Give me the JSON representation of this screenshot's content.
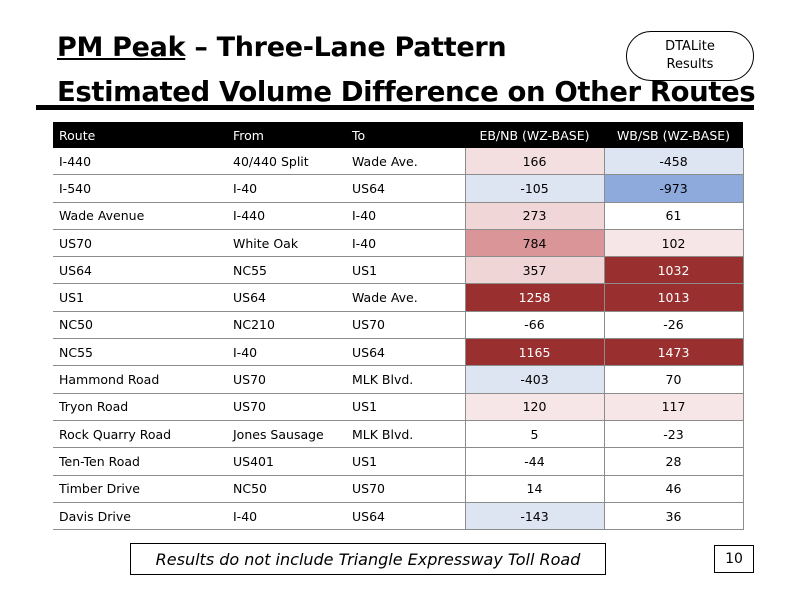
{
  "title": {
    "line1_underlined": "PM Peak",
    "line1_rest": " – Three-Lane Pattern",
    "line2": "Estimated Volume Difference on Other Routes"
  },
  "badge": {
    "line1": "DTALite",
    "line2": "Results"
  },
  "table": {
    "headers": [
      "Route",
      "From",
      "To",
      "EB/NB (WZ-BASE)",
      "WB/SB (WZ-BASE)"
    ],
    "rows": [
      {
        "route": "I-440",
        "from": "40/440 Split",
        "to": "Wade Ave.",
        "eb": "166",
        "wb": "-458",
        "eb_bg": "#f3dfe0",
        "wb_bg": "#dde4f2",
        "eb_fg": "#000000",
        "wb_fg": "#000000"
      },
      {
        "route": "I-540",
        "from": "I-40",
        "to": "US64",
        "eb": "-105",
        "wb": "-973",
        "eb_bg": "#dde4f2",
        "wb_bg": "#8eaadc",
        "eb_fg": "#000000",
        "wb_fg": "#000000"
      },
      {
        "route": "Wade Avenue",
        "from": "I-440",
        "to": "I-40",
        "eb": "273",
        "wb": "61",
        "eb_bg": "#f1d6d7",
        "wb_bg": "#ffffff",
        "eb_fg": "#000000",
        "wb_fg": "#000000"
      },
      {
        "route": "US70",
        "from": "White Oak",
        "to": "I-40",
        "eb": "784",
        "wb": "102",
        "eb_bg": "#d99597",
        "wb_bg": "#f6e6e7",
        "eb_fg": "#000000",
        "wb_fg": "#000000"
      },
      {
        "route": "US64",
        "from": "NC55",
        "to": "US1",
        "eb": "357",
        "wb": "1032",
        "eb_bg": "#f0d5d6",
        "wb_bg": "#9a2f2f",
        "eb_fg": "#000000",
        "wb_fg": "#ffffff"
      },
      {
        "route": "US1",
        "from": "US64",
        "to": "Wade Ave.",
        "eb": "1258",
        "wb": "1013",
        "eb_bg": "#9a2f2f",
        "wb_bg": "#9a2f2f",
        "eb_fg": "#ffffff",
        "wb_fg": "#ffffff"
      },
      {
        "route": "NC50",
        "from": "NC210",
        "to": "US70",
        "eb": "-66",
        "wb": "-26",
        "eb_bg": "#ffffff",
        "wb_bg": "#ffffff",
        "eb_fg": "#000000",
        "wb_fg": "#000000"
      },
      {
        "route": "NC55",
        "from": "I-40",
        "to": "US64",
        "eb": "1165",
        "wb": "1473",
        "eb_bg": "#9a2f2f",
        "wb_bg": "#9a2f2f",
        "eb_fg": "#ffffff",
        "wb_fg": "#ffffff"
      },
      {
        "route": "Hammond Road",
        "from": "US70",
        "to": "MLK Blvd.",
        "eb": "-403",
        "wb": "70",
        "eb_bg": "#dde4f2",
        "wb_bg": "#ffffff",
        "eb_fg": "#000000",
        "wb_fg": "#000000"
      },
      {
        "route": "Tryon Road",
        "from": "US70",
        "to": "US1",
        "eb": "120",
        "wb": "117",
        "eb_bg": "#f6e6e7",
        "wb_bg": "#f6e6e7",
        "eb_fg": "#000000",
        "wb_fg": "#000000"
      },
      {
        "route": "Rock Quarry Road",
        "from": "Jones Sausage",
        "to": "MLK Blvd.",
        "eb": "5",
        "wb": "-23",
        "eb_bg": "#ffffff",
        "wb_bg": "#ffffff",
        "eb_fg": "#000000",
        "wb_fg": "#000000"
      },
      {
        "route": "Ten-Ten Road",
        "from": "US401",
        "to": "US1",
        "eb": "-44",
        "wb": "28",
        "eb_bg": "#ffffff",
        "wb_bg": "#ffffff",
        "eb_fg": "#000000",
        "wb_fg": "#000000"
      },
      {
        "route": "Timber Drive",
        "from": "NC50",
        "to": "US70",
        "eb": "14",
        "wb": "46",
        "eb_bg": "#ffffff",
        "wb_bg": "#ffffff",
        "eb_fg": "#000000",
        "wb_fg": "#000000"
      },
      {
        "route": "Davis Drive",
        "from": "I-40",
        "to": "US64",
        "eb": "-143",
        "wb": "36",
        "eb_bg": "#dde4f2",
        "wb_bg": "#ffffff",
        "eb_fg": "#000000",
        "wb_fg": "#000000"
      }
    ]
  },
  "footnote": "Results do not include Triangle Expressway Toll Road",
  "page_number": "10"
}
